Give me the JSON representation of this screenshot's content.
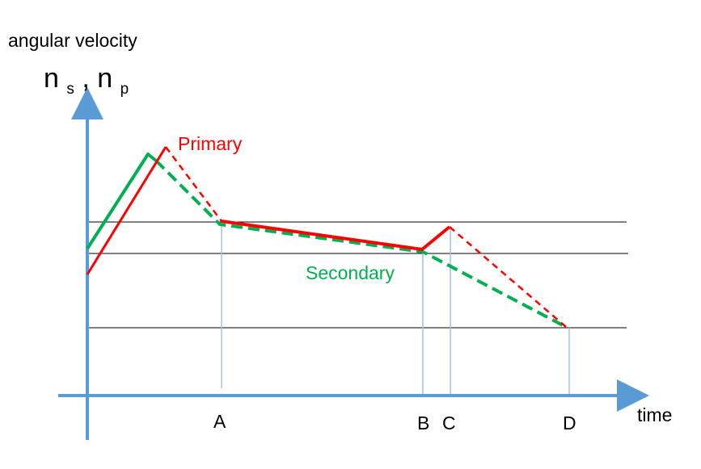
{
  "labels": {
    "y_axis_title": "angular velocity",
    "y_symbol_n1": "n",
    "y_symbol_s": "s",
    "y_symbol_sep": ", ",
    "y_symbol_n2": "n",
    "y_symbol_p": "p",
    "x_axis_title": "time",
    "primary": "Primary",
    "secondary": "Secondary",
    "time_marks": [
      "A",
      "B",
      "C",
      "D"
    ]
  },
  "colors": {
    "axis": "#5b9bd5",
    "primary": "#ff0000",
    "secondary": "#00b050",
    "guide": "#000000",
    "marker": "#9dc3e6",
    "text": "#000000",
    "primary_label": "#ff0000",
    "secondary_label": "#00b050"
  }
}
